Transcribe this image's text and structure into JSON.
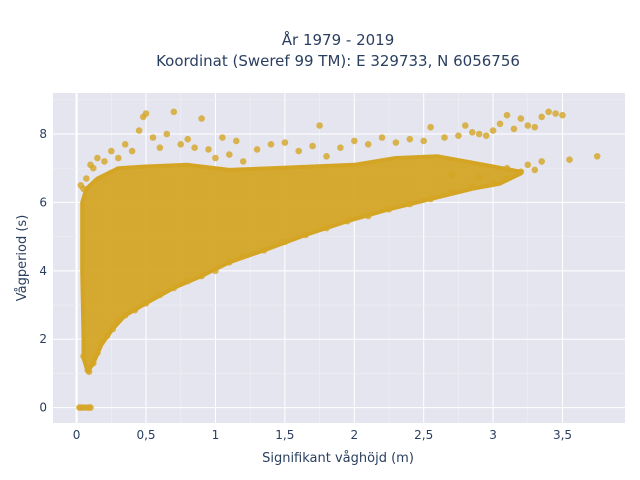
{
  "chart_data": {
    "type": "scatter",
    "title_line1": "År 1979 - 2019",
    "title_line2": "Koordinat (Sweref 99 TM): E 329733, N 6056756",
    "xlabel": "Signifikant våghöjd (m)",
    "ylabel": "Vågperiod (s)",
    "xlim": [
      -0.17,
      3.95
    ],
    "ylim": [
      -0.45,
      9.2
    ],
    "x_ticks": [
      0,
      0.5,
      1,
      1.5,
      2,
      2.5,
      3,
      3.5
    ],
    "x_tick_labels": [
      "0",
      "0,5",
      "1",
      "1,5",
      "2",
      "2,5",
      "3",
      "3,5"
    ],
    "y_ticks": [
      0,
      2,
      4,
      6,
      8
    ],
    "y_tick_labels": [
      "0",
      "2",
      "4",
      "6",
      "8"
    ],
    "grid": true,
    "marker_color": "#d4a524",
    "plot_background": "#e5e5f0",
    "points": [
      [
        0.02,
        0
      ],
      [
        0.03,
        0
      ],
      [
        0.05,
        0
      ],
      [
        0.07,
        0
      ],
      [
        0.09,
        0
      ],
      [
        0.1,
        0
      ],
      [
        0.05,
        1.5
      ],
      [
        0.08,
        1.1
      ],
      [
        0.09,
        1.05
      ],
      [
        0.12,
        1.3
      ],
      [
        0.15,
        1.6
      ],
      [
        0.18,
        1.9
      ],
      [
        0.22,
        2.1
      ],
      [
        0.26,
        2.3
      ],
      [
        0.3,
        2.55
      ],
      [
        0.35,
        2.7
      ],
      [
        0.42,
        2.85
      ],
      [
        0.5,
        3.05
      ],
      [
        0.6,
        3.3
      ],
      [
        0.7,
        3.5
      ],
      [
        0.8,
        3.7
      ],
      [
        0.9,
        3.85
      ],
      [
        1.0,
        4.0
      ],
      [
        1.1,
        4.25
      ],
      [
        1.2,
        4.45
      ],
      [
        1.35,
        4.6
      ],
      [
        1.5,
        4.85
      ],
      [
        1.65,
        5.05
      ],
      [
        1.8,
        5.25
      ],
      [
        1.95,
        5.45
      ],
      [
        2.1,
        5.6
      ],
      [
        2.25,
        5.8
      ],
      [
        2.4,
        5.95
      ],
      [
        2.55,
        6.1
      ],
      [
        2.7,
        6.3
      ],
      [
        2.85,
        6.45
      ],
      [
        3.0,
        6.55
      ],
      [
        3.1,
        6.7
      ],
      [
        3.2,
        6.9
      ],
      [
        0.03,
        6.5
      ],
      [
        0.05,
        6.4
      ],
      [
        0.07,
        6.7
      ],
      [
        0.1,
        7.1
      ],
      [
        0.12,
        7.0
      ],
      [
        0.15,
        7.3
      ],
      [
        0.2,
        7.2
      ],
      [
        0.25,
        7.5
      ],
      [
        0.3,
        7.3
      ],
      [
        0.35,
        7.7
      ],
      [
        0.4,
        7.5
      ],
      [
        0.45,
        8.1
      ],
      [
        0.48,
        8.5
      ],
      [
        0.5,
        8.6
      ],
      [
        0.55,
        7.9
      ],
      [
        0.6,
        7.6
      ],
      [
        0.65,
        8.0
      ],
      [
        0.7,
        8.65
      ],
      [
        0.75,
        7.7
      ],
      [
        0.8,
        7.85
      ],
      [
        0.85,
        7.6
      ],
      [
        0.9,
        8.45
      ],
      [
        0.95,
        7.55
      ],
      [
        1.0,
        7.3
      ],
      [
        1.05,
        7.9
      ],
      [
        1.1,
        7.4
      ],
      [
        1.15,
        7.8
      ],
      [
        1.2,
        7.2
      ],
      [
        1.3,
        7.55
      ],
      [
        1.4,
        7.7
      ],
      [
        1.5,
        7.75
      ],
      [
        1.6,
        7.5
      ],
      [
        1.7,
        7.65
      ],
      [
        1.75,
        8.25
      ],
      [
        1.8,
        7.35
      ],
      [
        1.9,
        7.6
      ],
      [
        2.0,
        7.8
      ],
      [
        2.1,
        7.7
      ],
      [
        2.2,
        7.9
      ],
      [
        2.3,
        7.75
      ],
      [
        2.4,
        7.85
      ],
      [
        2.5,
        7.8
      ],
      [
        2.55,
        8.2
      ],
      [
        2.65,
        7.9
      ],
      [
        2.75,
        7.95
      ],
      [
        2.8,
        8.25
      ],
      [
        2.85,
        8.05
      ],
      [
        2.9,
        8.0
      ],
      [
        2.95,
        7.95
      ],
      [
        3.0,
        8.1
      ],
      [
        3.05,
        8.3
      ],
      [
        3.1,
        8.55
      ],
      [
        3.15,
        8.15
      ],
      [
        3.2,
        8.45
      ],
      [
        3.25,
        8.25
      ],
      [
        3.3,
        8.2
      ],
      [
        3.35,
        8.5
      ],
      [
        3.4,
        8.65
      ],
      [
        3.45,
        8.6
      ],
      [
        3.5,
        8.55
      ],
      [
        3.55,
        7.25
      ],
      [
        3.75,
        7.35
      ],
      [
        3.35,
        7.2
      ],
      [
        3.25,
        7.1
      ],
      [
        3.3,
        6.95
      ],
      [
        3.1,
        7.0
      ],
      [
        2.9,
        6.75
      ],
      [
        2.7,
        6.8
      ]
    ]
  }
}
